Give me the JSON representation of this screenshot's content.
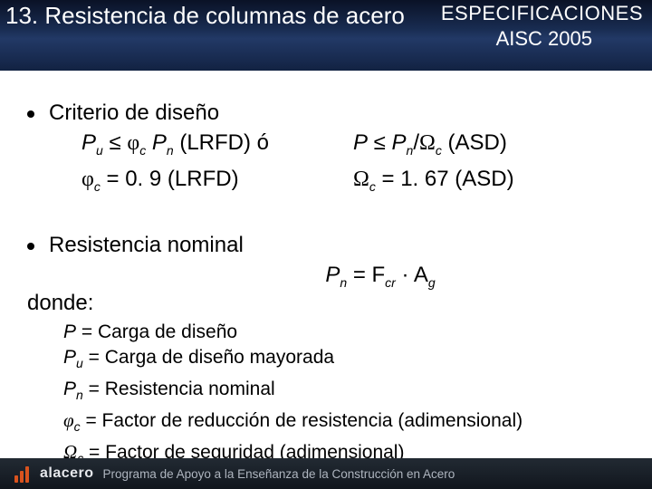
{
  "header": {
    "title": "13. Resistencia de columnas de acero",
    "spec_line1": "ESPECIFICACIONES",
    "spec_line2": "AISC 2005"
  },
  "bullets": {
    "b1": "Criterio de diseño",
    "b2": "Resistencia nominal"
  },
  "eq": {
    "lrfd_main_pre": "P",
    "lrfd_main_sub_u": "u",
    "lrfd_main_mid": " ≤ ",
    "phi": "φ",
    "sub_c": "c",
    "P": "P",
    "sub_n": "n",
    "lrfd_tag": " (LRFD)",
    "o_word": "   ó",
    "asd_tag": " (ASD)",
    "slash": "/",
    "Omega": "Ω",
    "phi_val": " = 0. 9 (LRFD)",
    "omega_val": " = 1. 67 (ASD)",
    "pn_eq_pre": "P",
    "pn_eq_mid": " = F",
    "sub_cr": "cr",
    "pn_eq_dot": " · A",
    "sub_g": "g"
  },
  "donde": "donde:",
  "defs": {
    "d1_sym": "P",
    "d1_txt": " = Carga de diseño",
    "d2_sym": "P",
    "d2_sub": "u",
    "d2_txt": " = Carga de diseño mayorada",
    "d3_sym": "P",
    "d3_sub": "n",
    "d3_txt": " = Resistencia nominal",
    "d4_sym": "φ",
    "d4_sub": "c",
    "d4_txt": "  = Factor de reducción de resistencia (adimensional)",
    "d5_sym": "Ω",
    "d5_sub": "c",
    "d5_txt": " = Factor de seguridad (adimensional)"
  },
  "footer": {
    "brand": "alacero",
    "program": "Programa de Apoyo a la Enseñanza de la Construcción en Acero"
  },
  "colors": {
    "header_grad_top": "#0a1226",
    "header_grad_bot": "#122242",
    "footer_grad_top": "#222a33",
    "footer_grad_bot": "#11161d",
    "accent": "#d9531e",
    "text": "#000000",
    "header_text": "#ffffff",
    "footer_text": "#aeb5bf"
  }
}
